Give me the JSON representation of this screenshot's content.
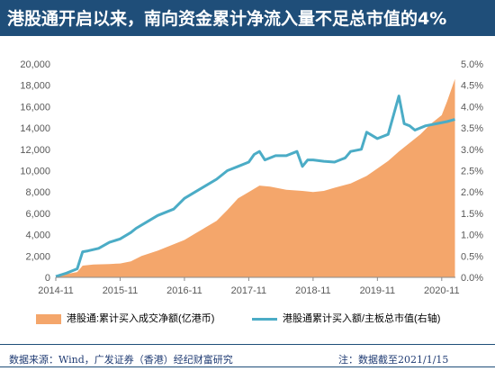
{
  "header": {
    "title": "港股通开启以来，南向资金累计净流入量不足总市值的4%"
  },
  "footer": {
    "source": "数据来源：Wind，广发证券（香港）经纪财富研究",
    "note": "注：数据截至2021/1/15"
  },
  "colors": {
    "title_bg": "#1f4e79",
    "area": "#f4a66b",
    "line": "#4bacc6"
  },
  "chart_data": {
    "type": "area",
    "x_tick_labels": [
      "2014-11",
      "2015-11",
      "2016-11",
      "2017-11",
      "2018-11",
      "2019-11",
      "2020-11"
    ],
    "y_left": {
      "ticks": [
        "0",
        "2,000",
        "4,000",
        "6,000",
        "8,000",
        "10,000",
        "12,000",
        "14,000",
        "16,000",
        "18,000",
        "20,000"
      ],
      "ylim": [
        0,
        20000
      ]
    },
    "y_right": {
      "ticks": [
        "0.0%",
        "0.5%",
        "1.0%",
        "1.5%",
        "2.0%",
        "2.5%",
        "3.0%",
        "3.5%",
        "4.0%",
        "4.5%",
        "5.0%"
      ],
      "ylim": [
        0,
        5.0
      ]
    },
    "series": [
      {
        "name": "港股通:累计买入成交净额(亿港币)",
        "type": "area",
        "axis": "left",
        "x": [
          "2014-11",
          "2015-01",
          "2015-03",
          "2015-04",
          "2015-06",
          "2015-09",
          "2015-11",
          "2016-01",
          "2016-03",
          "2016-06",
          "2016-09",
          "2016-11",
          "2017-01",
          "2017-03",
          "2017-05",
          "2017-07",
          "2017-09",
          "2017-11",
          "2018-01",
          "2018-03",
          "2018-06",
          "2018-09",
          "2018-11",
          "2019-01",
          "2019-03",
          "2019-06",
          "2019-09",
          "2019-11",
          "2020-01",
          "2020-03",
          "2020-05",
          "2020-07",
          "2020-09",
          "2020-11",
          "2020-12",
          "2021-01-15"
        ],
        "values": [
          50,
          300,
          500,
          1100,
          1200,
          1250,
          1300,
          1500,
          2000,
          2500,
          3100,
          3500,
          4100,
          4700,
          5300,
          6300,
          7400,
          8000,
          8600,
          8500,
          8200,
          8100,
          8000,
          8100,
          8400,
          8800,
          9500,
          10200,
          10900,
          11800,
          12600,
          13400,
          14400,
          15200,
          16500,
          18600
        ]
      },
      {
        "name": "港股通累计买入额/主板总市值(右轴)",
        "type": "line",
        "axis": "right",
        "x": [
          "2014-11",
          "2015-01",
          "2015-03",
          "2015-04",
          "2015-05",
          "2015-07",
          "2015-09",
          "2015-11",
          "2016-01",
          "2016-02",
          "2016-04",
          "2016-06",
          "2016-09",
          "2016-11",
          "2017-01",
          "2017-03",
          "2017-05",
          "2017-07",
          "2017-09",
          "2017-11",
          "2017-12",
          "2018-01",
          "2018-02",
          "2018-04",
          "2018-06",
          "2018-08",
          "2018-09",
          "2018-10",
          "2018-11",
          "2019-01",
          "2019-03",
          "2019-05",
          "2019-06",
          "2019-08",
          "2019-09",
          "2019-11",
          "2020-01",
          "2020-03",
          "2020-04",
          "2020-05",
          "2020-06",
          "2020-08",
          "2020-10",
          "2020-12",
          "2021-01-15"
        ],
        "values": [
          0.02,
          0.1,
          0.2,
          0.6,
          0.62,
          0.68,
          0.82,
          0.9,
          1.05,
          1.15,
          1.3,
          1.45,
          1.6,
          1.85,
          2.0,
          2.15,
          2.3,
          2.5,
          2.6,
          2.7,
          2.88,
          2.95,
          2.75,
          2.85,
          2.85,
          2.95,
          2.6,
          2.75,
          2.75,
          2.72,
          2.7,
          2.8,
          2.95,
          3.0,
          3.4,
          3.25,
          3.35,
          4.25,
          3.6,
          3.55,
          3.45,
          3.55,
          3.6,
          3.65,
          3.7
        ]
      }
    ],
    "legend_position": "bottom",
    "grid": false
  }
}
